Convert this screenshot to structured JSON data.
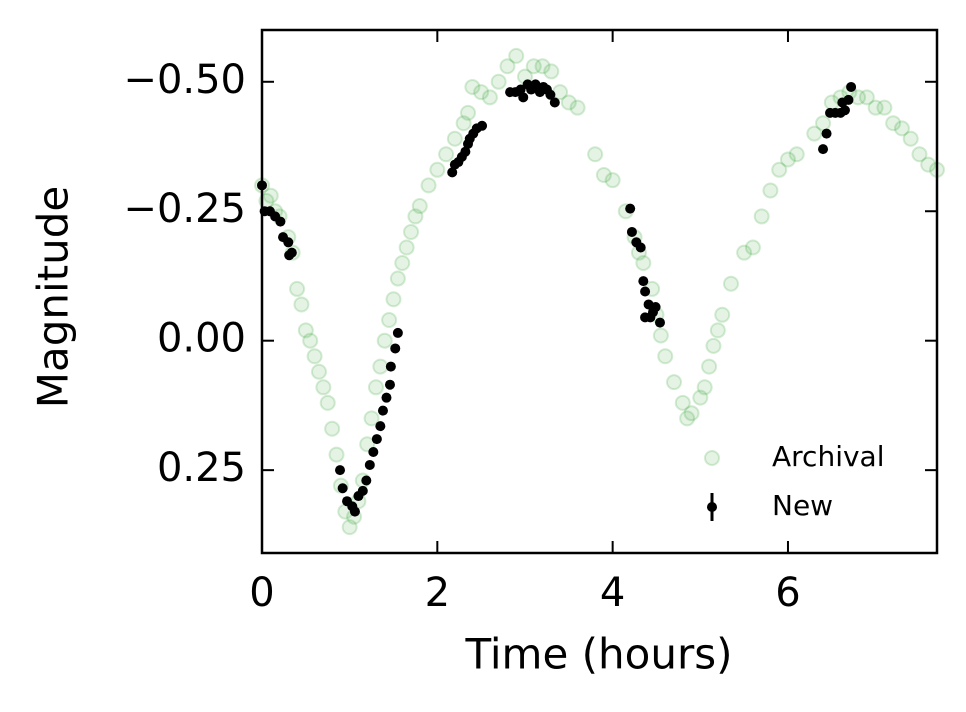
{
  "chart_data": {
    "type": "scatter",
    "xlabel": "Time (hours)",
    "ylabel": "Magnitude",
    "xlim": [
      0,
      7.7
    ],
    "ylim": [
      -0.6,
      0.41
    ],
    "y_inverted": true,
    "xticks": [
      0,
      2,
      4,
      6
    ],
    "yticks": [
      {
        "value": -0.5,
        "label": "−0.50"
      },
      {
        "value": -0.25,
        "label": "−0.25"
      },
      {
        "value": 0,
        "label": "0.00"
      },
      0.25
    ],
    "legend": "lower right",
    "series": [
      {
        "name": "Archival",
        "color": "#2ca02c",
        "x": [
          0.0,
          0.05,
          0.1,
          0.15,
          0.2,
          0.3,
          0.35,
          0.4,
          0.45,
          0.5,
          0.55,
          0.6,
          0.65,
          0.7,
          0.75,
          0.8,
          0.85,
          0.9,
          0.95,
          1.0,
          1.05,
          1.1,
          1.15,
          1.2,
          1.25,
          1.3,
          1.35,
          1.4,
          1.45,
          1.5,
          1.55,
          1.6,
          1.65,
          1.7,
          1.75,
          1.8,
          1.9,
          2.0,
          2.1,
          2.2,
          2.3,
          2.35,
          2.4,
          2.5,
          2.6,
          2.7,
          2.8,
          2.9,
          3.0,
          3.1,
          3.2,
          3.3,
          3.4,
          3.5,
          3.6,
          3.8,
          3.9,
          4.0,
          4.15,
          4.25,
          4.3,
          4.35,
          4.45,
          4.5,
          4.55,
          4.6,
          4.7,
          4.8,
          4.85,
          4.9,
          5.0,
          5.05,
          5.1,
          5.15,
          5.2,
          5.25,
          5.35,
          5.5,
          5.6,
          5.7,
          5.8,
          5.9,
          6.0,
          6.1,
          6.3,
          6.4,
          6.5,
          6.6,
          6.7,
          6.8,
          6.9,
          7.0,
          7.1,
          7.2,
          7.3,
          7.4,
          7.5,
          7.6,
          7.7
        ],
        "values": [
          -0.3,
          -0.27,
          -0.28,
          -0.25,
          -0.24,
          -0.2,
          -0.17,
          -0.1,
          -0.07,
          -0.02,
          0.0,
          0.03,
          0.06,
          0.09,
          0.12,
          0.17,
          0.22,
          0.28,
          0.33,
          0.36,
          0.34,
          0.31,
          0.27,
          0.2,
          0.15,
          0.09,
          0.05,
          0.0,
          -0.04,
          -0.08,
          -0.12,
          -0.15,
          -0.18,
          -0.21,
          -0.24,
          -0.26,
          -0.3,
          -0.33,
          -0.36,
          -0.39,
          -0.42,
          -0.44,
          -0.49,
          -0.48,
          -0.47,
          -0.5,
          -0.53,
          -0.55,
          -0.51,
          -0.53,
          -0.53,
          -0.52,
          -0.48,
          -0.46,
          -0.45,
          -0.36,
          -0.32,
          -0.31,
          -0.25,
          -0.2,
          -0.17,
          -0.15,
          -0.1,
          -0.05,
          -0.01,
          0.03,
          0.08,
          0.12,
          0.15,
          0.14,
          0.11,
          0.09,
          0.05,
          0.01,
          -0.02,
          -0.05,
          -0.11,
          -0.17,
          -0.18,
          -0.24,
          -0.29,
          -0.33,
          -0.35,
          -0.36,
          -0.4,
          -0.42,
          -0.46,
          -0.47,
          -0.48,
          -0.47,
          -0.47,
          -0.45,
          -0.45,
          -0.42,
          -0.41,
          -0.39,
          -0.36,
          -0.34,
          -0.33
        ]
      },
      {
        "name": "New",
        "color": "#000000",
        "x": [
          0.0,
          0.03,
          0.09,
          0.15,
          0.21,
          0.24,
          0.3,
          0.31,
          0.34,
          0.89,
          0.92,
          0.97,
          1.03,
          1.06,
          1.1,
          1.15,
          1.19,
          1.23,
          1.27,
          1.31,
          1.35,
          1.38,
          1.42,
          1.46,
          1.47,
          1.52,
          1.55,
          2.17,
          2.2,
          2.24,
          2.28,
          2.32,
          2.35,
          2.37,
          2.41,
          2.45,
          2.51,
          2.83,
          2.89,
          2.95,
          2.98,
          3.03,
          3.07,
          3.12,
          3.17,
          3.21,
          3.25,
          3.29,
          3.34,
          4.2,
          4.22,
          4.27,
          4.32,
          4.35,
          4.37,
          4.41,
          4.37,
          4.43,
          4.49,
          4.54,
          4.46,
          6.4,
          6.44,
          6.48,
          6.54,
          6.6,
          6.65,
          6.62,
          6.69,
          6.72
        ],
        "values": [
          -0.3,
          -0.25,
          -0.25,
          -0.24,
          -0.23,
          -0.2,
          -0.19,
          -0.165,
          -0.17,
          0.25,
          0.285,
          0.31,
          0.32,
          0.33,
          0.3,
          0.29,
          0.27,
          0.24,
          0.215,
          0.19,
          0.165,
          0.135,
          0.11,
          0.085,
          0.05,
          0.015,
          -0.015,
          -0.325,
          -0.34,
          -0.345,
          -0.355,
          -0.365,
          -0.38,
          -0.39,
          -0.4,
          -0.41,
          -0.415,
          -0.48,
          -0.48,
          -0.485,
          -0.47,
          -0.495,
          -0.485,
          -0.495,
          -0.48,
          -0.49,
          -0.485,
          -0.475,
          -0.46,
          -0.255,
          -0.21,
          -0.19,
          -0.18,
          -0.115,
          -0.095,
          -0.07,
          -0.045,
          -0.045,
          -0.065,
          -0.035,
          -0.055,
          -0.37,
          -0.4,
          -0.44,
          -0.44,
          -0.44,
          -0.445,
          -0.46,
          -0.465,
          -0.49
        ]
      }
    ]
  }
}
